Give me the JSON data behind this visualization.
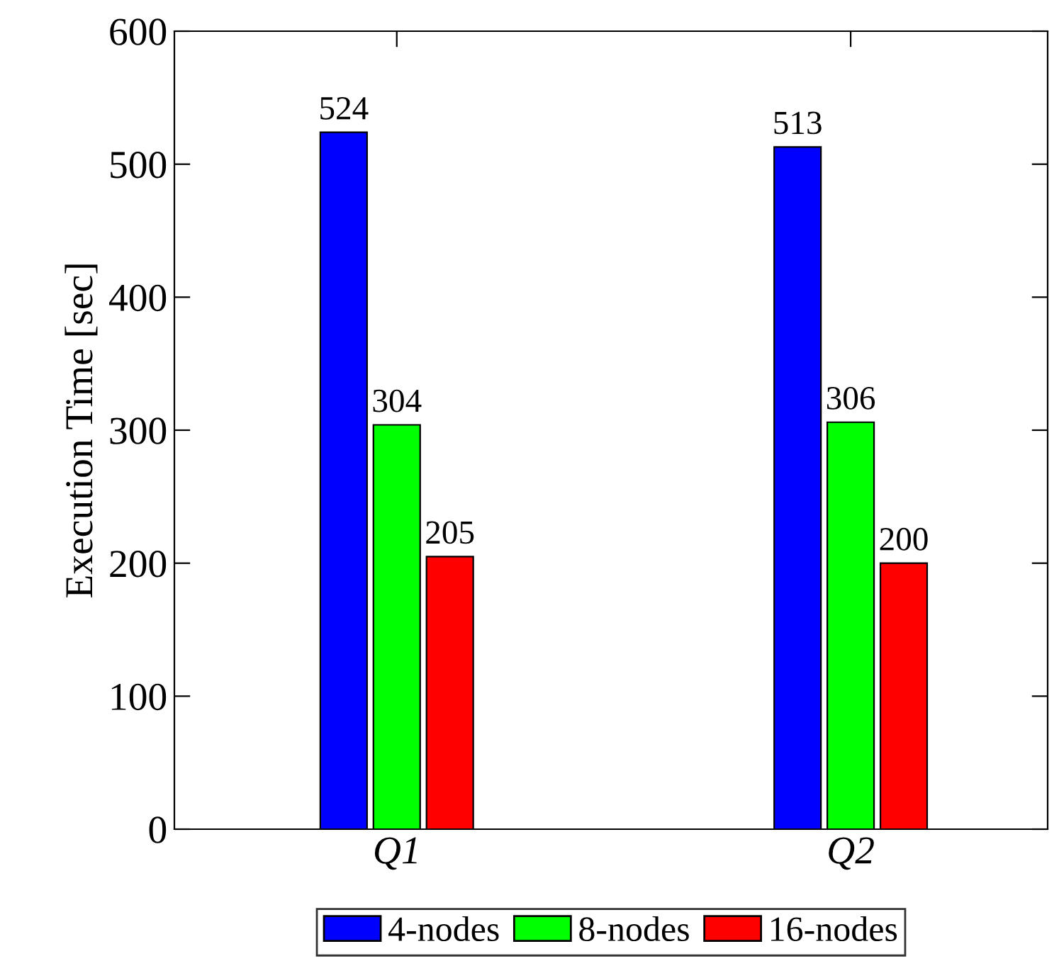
{
  "chart_data": {
    "type": "bar",
    "ylabel": "Execution Time [sec]",
    "categories": [
      "Q1",
      "Q2"
    ],
    "series": [
      {
        "name": "4-nodes",
        "color": "#0000ff",
        "values": [
          524,
          513
        ]
      },
      {
        "name": "8-nodes",
        "color": "#00ff00",
        "values": [
          304,
          306
        ]
      },
      {
        "name": "16-nodes",
        "color": "#ff0000",
        "values": [
          205,
          200
        ]
      }
    ],
    "ylim": [
      0,
      600
    ],
    "yticks": [
      0,
      100,
      200,
      300,
      400,
      500,
      600
    ],
    "data_labels": true,
    "grid": false,
    "legend": "bottom"
  }
}
